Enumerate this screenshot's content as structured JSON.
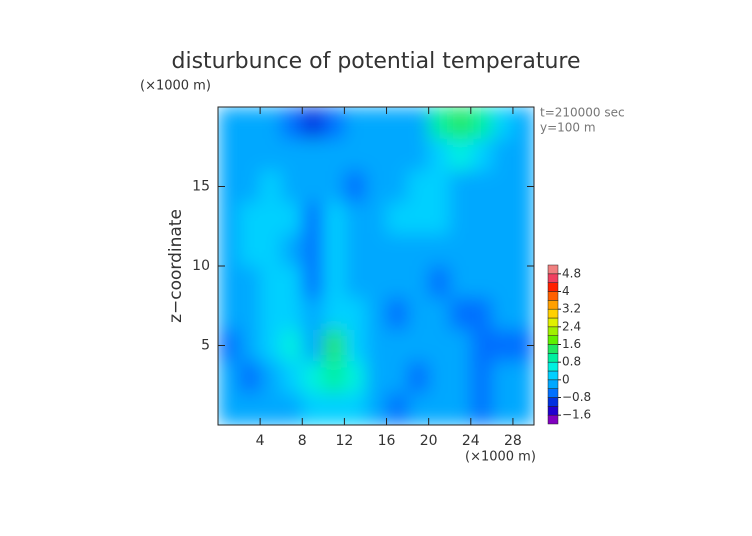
{
  "chart_data": {
    "type": "contour",
    "title": "disturbunce of potential temperature",
    "y_unit": "(×1000 m)",
    "x_unit": "(×1000 m)",
    "y_label": "z−coordinate",
    "annotations": [
      "t=210000 sec",
      "y=100 m"
    ],
    "xlim": [
      0,
      30
    ],
    "ylim": [
      0,
      20
    ],
    "xticks": [
      4,
      8,
      12,
      16,
      20,
      24,
      28
    ],
    "yticks": [
      5,
      10,
      15
    ],
    "x": [
      1,
      3,
      5,
      7,
      9,
      11,
      13,
      15,
      17,
      19,
      21,
      23,
      25,
      27,
      29
    ],
    "y": [
      19,
      17,
      15,
      13,
      11,
      9,
      7,
      5,
      3,
      1
    ],
    "values": [
      [
        -0.3,
        -0.3,
        -0.3,
        -0.5,
        -0.9,
        -0.7,
        -0.3,
        -0.2,
        -0.3,
        -0.3,
        1.0,
        1.2,
        0.8,
        0.2,
        -0.3
      ],
      [
        -0.2,
        -0.3,
        -0.2,
        -0.3,
        -0.4,
        -0.3,
        -0.2,
        -0.2,
        -0.3,
        -0.1,
        0.3,
        0.6,
        0.3,
        -0.2,
        -0.3
      ],
      [
        -0.2,
        -0.2,
        0.2,
        -0.2,
        -0.3,
        -0.2,
        -0.5,
        -0.2,
        -0.1,
        0.1,
        0.2,
        -0.1,
        -0.2,
        -0.3,
        -0.4
      ],
      [
        -0.2,
        0.1,
        0.2,
        0.1,
        -0.6,
        0.1,
        -0.3,
        -0.1,
        0.0,
        0.0,
        0.1,
        -0.1,
        -0.2,
        -0.2,
        -0.3
      ],
      [
        -0.3,
        0.0,
        0.2,
        -0.2,
        -0.6,
        0.2,
        -0.2,
        -0.1,
        -0.3,
        -0.2,
        -0.2,
        -0.2,
        -0.2,
        -0.1,
        -0.2
      ],
      [
        -0.3,
        -0.1,
        0.1,
        0.1,
        -0.5,
        0.3,
        -0.1,
        -0.3,
        -0.2,
        -0.3,
        -0.5,
        -0.4,
        -0.3,
        -0.3,
        -0.2
      ],
      [
        -0.4,
        -0.2,
        0.0,
        0.3,
        -0.2,
        0.1,
        0.2,
        -0.2,
        -0.5,
        -0.4,
        -0.3,
        -0.6,
        -0.5,
        -0.3,
        -0.2
      ],
      [
        -0.8,
        -0.3,
        0.1,
        0.5,
        -0.2,
        1.5,
        0.3,
        -0.2,
        -0.3,
        -0.2,
        -0.4,
        -0.3,
        -0.5,
        -0.8,
        -0.7
      ],
      [
        -0.2,
        -0.6,
        -0.2,
        0.3,
        0.5,
        0.8,
        0.4,
        -0.1,
        -0.4,
        -0.5,
        -0.3,
        -0.2,
        -0.5,
        -0.4,
        -0.3
      ],
      [
        -0.2,
        -0.3,
        -0.2,
        -0.1,
        0.2,
        0.1,
        0.0,
        -0.3,
        -0.6,
        -0.4,
        -0.3,
        -0.3,
        -0.5,
        -0.3,
        -0.2
      ]
    ],
    "levels": [
      -2.0,
      -1.6,
      -1.2,
      -0.8,
      -0.4,
      0,
      0.4,
      0.8,
      1.2,
      1.6,
      2.0,
      2.4,
      2.8,
      3.2,
      3.6,
      4.0,
      4.4,
      4.8,
      5.2
    ],
    "colors": [
      "#8000c0",
      "#2000d0",
      "#0030e0",
      "#0070ff",
      "#00a8ff",
      "#00d0ff",
      "#00f0e0",
      "#00f0a0",
      "#20e860",
      "#60f000",
      "#a0f000",
      "#e0f000",
      "#ffd000",
      "#ffa000",
      "#ff6000",
      "#ff2000",
      "#f04060",
      "#f08080"
    ],
    "colorbar_ticks": [
      {
        "value": -1.6,
        "label": "−1.6"
      },
      {
        "value": -0.8,
        "label": "−0.8"
      },
      0,
      0.8,
      1.6,
      2.4,
      3.2,
      4,
      4.8
    ]
  }
}
